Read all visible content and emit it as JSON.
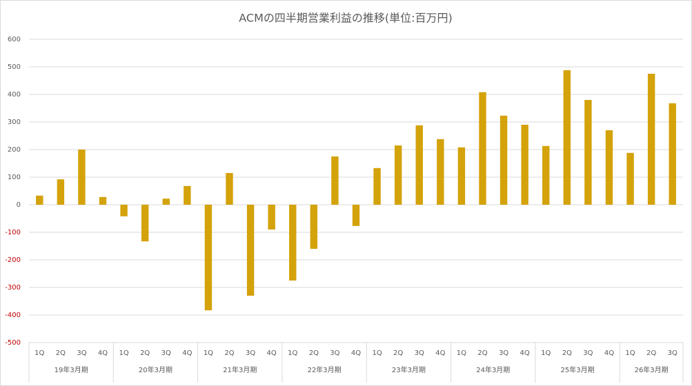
{
  "chart_data": {
    "type": "bar",
    "title": "ACMの四半期営業利益の推移(単位:百万円)",
    "color": "#d4a20a",
    "grid": true,
    "tick_color": "#595959",
    "negative_tick_color": "#c00000",
    "ylim": [
      -500,
      600
    ],
    "yticks": [
      -500,
      -400,
      -300,
      -200,
      -100,
      0,
      100,
      200,
      300,
      400,
      500,
      600
    ],
    "groups": [
      {
        "name": "19年3月期",
        "categories": [
          "1Q",
          "2Q",
          "3Q",
          "4Q"
        ],
        "values": [
          33,
          92,
          200,
          28
        ]
      },
      {
        "name": "20年3月期",
        "categories": [
          "1Q",
          "2Q",
          "3Q",
          "4Q"
        ],
        "values": [
          -42,
          -133,
          22,
          68
        ]
      },
      {
        "name": "21年3月期",
        "categories": [
          "1Q",
          "2Q",
          "3Q",
          "4Q"
        ],
        "values": [
          -383,
          115,
          -330,
          -90
        ]
      },
      {
        "name": "22年3月期",
        "categories": [
          "1Q",
          "2Q",
          "3Q",
          "4Q"
        ],
        "values": [
          -275,
          -160,
          175,
          -77
        ]
      },
      {
        "name": "23年3月期",
        "categories": [
          "1Q",
          "2Q",
          "3Q",
          "4Q"
        ],
        "values": [
          133,
          215,
          288,
          238
        ]
      },
      {
        "name": "24年3月期",
        "categories": [
          "1Q",
          "2Q",
          "3Q",
          "4Q"
        ],
        "values": [
          208,
          408,
          323,
          290
        ]
      },
      {
        "name": "25年3月期",
        "categories": [
          "1Q",
          "2Q",
          "3Q",
          "4Q"
        ],
        "values": [
          213,
          488,
          380,
          270
        ]
      },
      {
        "name": "26年3月期",
        "categories": [
          "1Q",
          "2Q",
          "3Q"
        ],
        "values": [
          188,
          475,
          368
        ]
      }
    ]
  }
}
